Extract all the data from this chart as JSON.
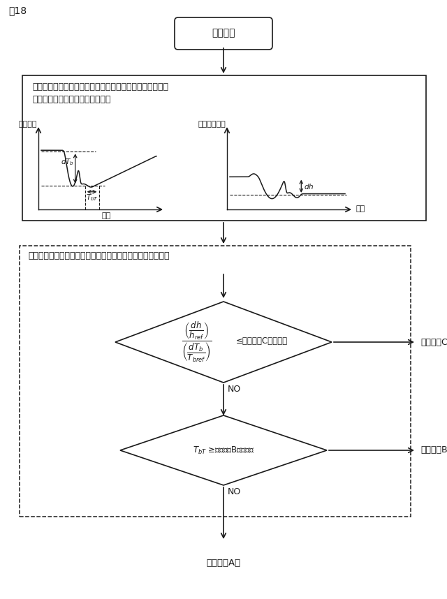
{
  "fig_label": "図18",
  "title_box": "処理開始",
  "process_box_line1": "ロールギャップステップ状変更後の入側張力、出側板厚偏",
  "process_box_line2": "差より、下記パラメータを求める",
  "left_graph_ylabel": "入側張力",
  "left_graph_xlabel": "時間",
  "right_graph_ylabel": "出側板厚偏差",
  "right_graph_xlabel": "時間",
  "dashed_box_text": "求めたパラメータの大小関係から最適制御方法を選択する。",
  "control_c": "制御方法C）",
  "control_b": "制御方法B）",
  "control_a": "制御方法A）",
  "no_label": "NO",
  "bg_color": "#ffffff",
  "line_color": "#1a1a1a",
  "font_size_main": 10,
  "font_size_small": 8.5,
  "font_size_tiny": 7.5
}
